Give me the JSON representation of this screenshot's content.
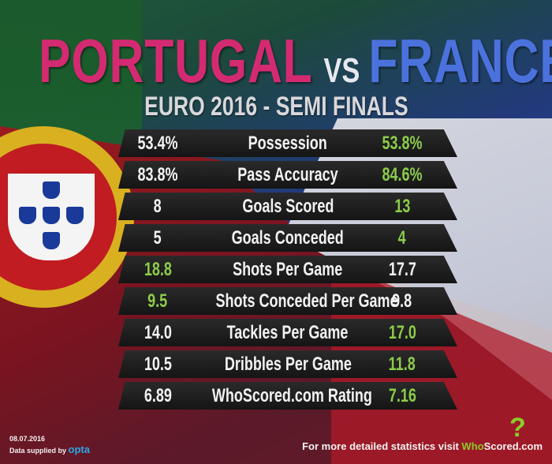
{
  "header": {
    "team_left": "PORTUGAL",
    "vs": "VS",
    "team_right": "FRANCE",
    "subtitle": "EURO 2016 - SEMI FINALS"
  },
  "colors": {
    "portugal": "#d42a72",
    "france": "#4b72dc",
    "highlight": "#8ccc4a",
    "row_bg": "#1e1e1e"
  },
  "stats": [
    {
      "label": "Possession",
      "left": "53.4%",
      "right": "53.8%",
      "better": "right"
    },
    {
      "label": "Pass Accuracy",
      "left": "83.8%",
      "right": "84.6%",
      "better": "right"
    },
    {
      "label": "Goals Scored",
      "left": "8",
      "right": "13",
      "better": "right"
    },
    {
      "label": "Goals Conceded",
      "left": "5",
      "right": "4",
      "better": "right"
    },
    {
      "label": "Shots Per Game",
      "left": "18.8",
      "right": "17.7",
      "better": "left"
    },
    {
      "label": "Shots Conceded Per Game",
      "left": "9.5",
      "right": "9.8",
      "better": "left"
    },
    {
      "label": "Tackles Per Game",
      "left": "14.0",
      "right": "17.0",
      "better": "right"
    },
    {
      "label": "Dribbles Per Game",
      "left": "10.5",
      "right": "11.8",
      "better": "right"
    },
    {
      "label": "WhoScored.com Rating",
      "left": "6.89",
      "right": "7.16",
      "better": "right"
    }
  ],
  "footer": {
    "date": "08.07.2016",
    "supplied_by": "Data supplied by",
    "provider": "opta",
    "visit_text": "For more detailed statistics visit",
    "brand_who": "Who",
    "brand_scored": "Scored",
    "brand_com": ".com"
  }
}
